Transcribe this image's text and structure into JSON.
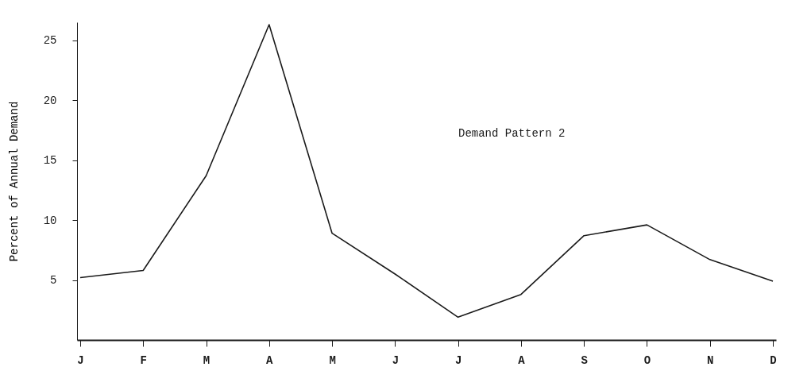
{
  "chart_data": {
    "type": "line",
    "ylabel": "Percent of Annual Demand",
    "categories": [
      "J",
      "F",
      "M",
      "A",
      "M",
      "J",
      "J",
      "A",
      "S",
      "O",
      "N",
      "D"
    ],
    "values": [
      5.2,
      5.8,
      13.7,
      26.3,
      8.9,
      5.5,
      1.9,
      3.8,
      8.7,
      9.6,
      6.7,
      4.9
    ],
    "color": "#1a1a1a",
    "ylim": [
      0,
      26.5
    ],
    "yticks": [
      5,
      10,
      15,
      20,
      25
    ],
    "annotations": [
      "Demand Pattern 2"
    ]
  }
}
